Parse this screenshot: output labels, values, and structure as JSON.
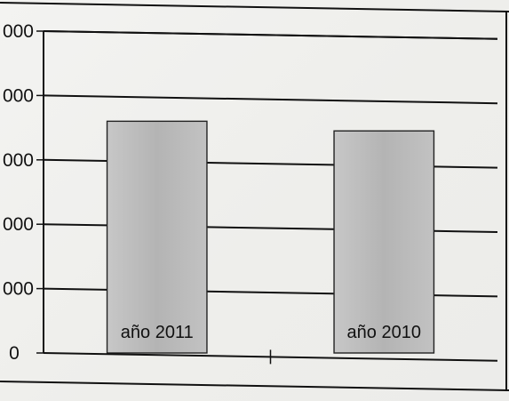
{
  "chart_data": {
    "type": "bar",
    "categories": [
      "año 2011",
      "año 2010"
    ],
    "values": [
      3.6,
      3.45
    ],
    "y_tick_labels": [
      "0",
      "000",
      "000",
      "000",
      "000",
      "000"
    ],
    "y_ticks": [
      0,
      1,
      2,
      3,
      4,
      5
    ],
    "ylim": [
      0,
      5
    ],
    "grid": true,
    "title": "",
    "xlabel": "",
    "ylabel": "",
    "bar_color": "#bdbdbd",
    "grid_color": "#111111",
    "frame_color": "#111111"
  }
}
